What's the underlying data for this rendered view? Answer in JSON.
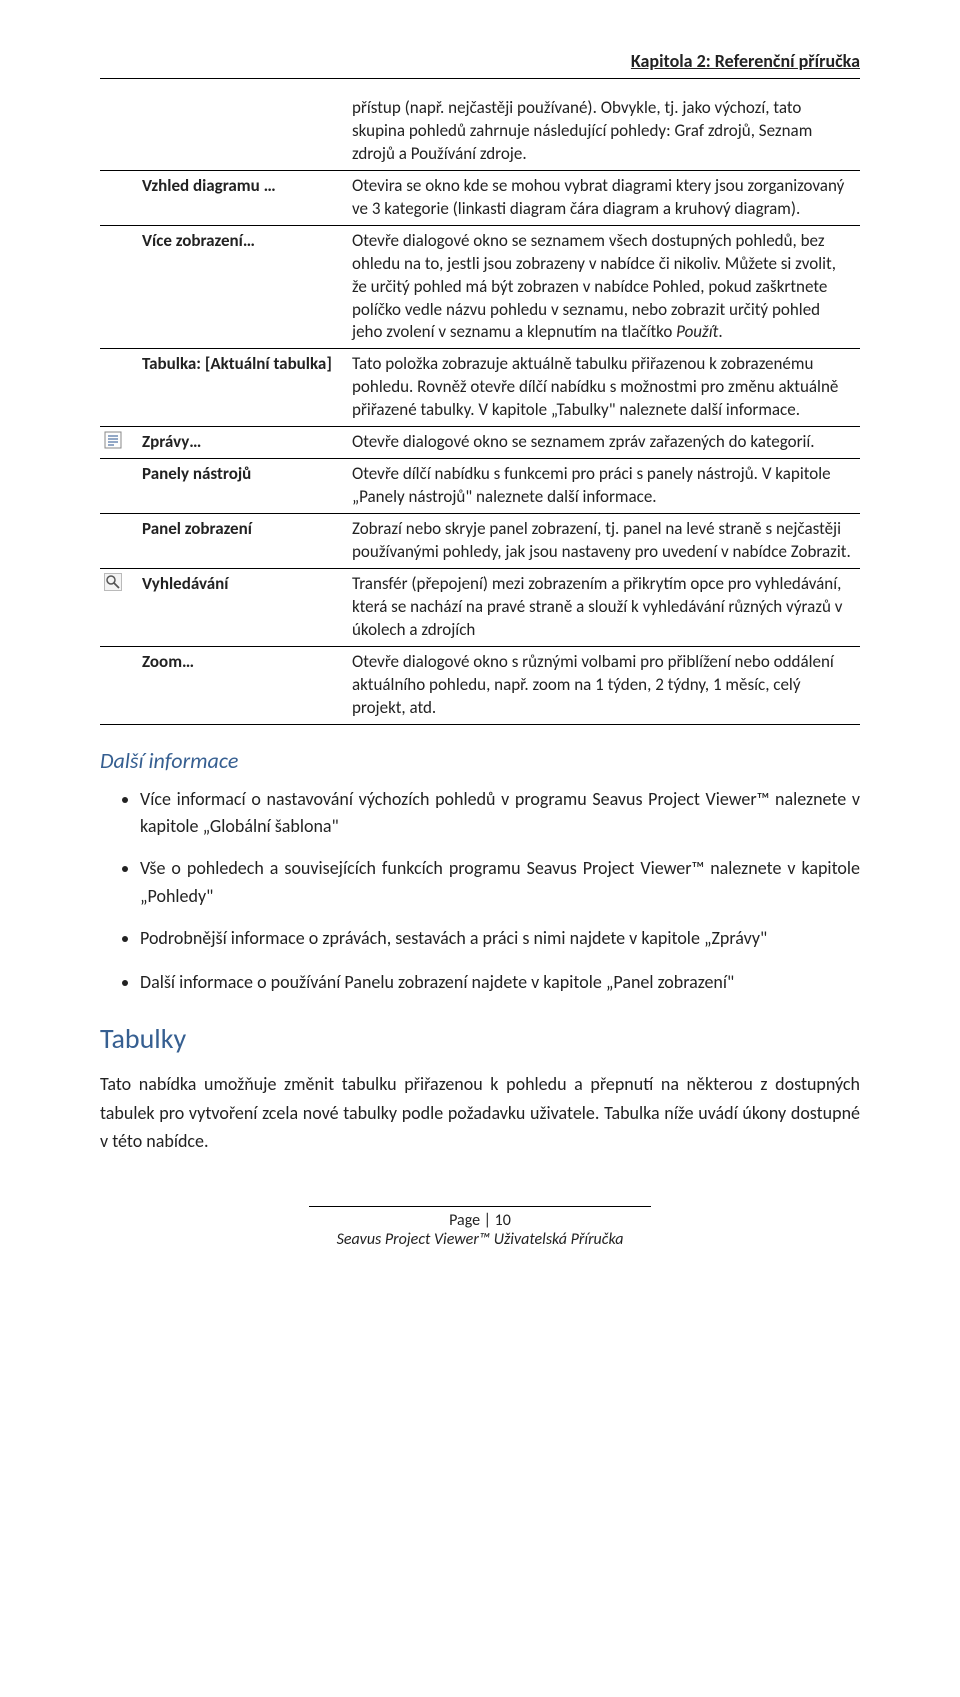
{
  "header": {
    "chapter": "Kapitola 2: Referenční příručka"
  },
  "table": {
    "rows": [
      {
        "icon": "",
        "label": "",
        "desc": "přístup (např. nejčastěji používané). Obvykle, tj. jako výchozí, tato skupina pohledů zahrnuje následující pohledy: Graf zdrojů, Seznam zdrojů a Používání zdroje."
      },
      {
        "icon": "",
        "label": "Vzhled diagramu …",
        "desc": "Otevira se okno  kde se mohou  vybrat diagrami  ktery jsou  zorganizovaný ve  3 kategorie (linkasti diagram  čára diagram  a kruhový diagram)."
      },
      {
        "icon": "",
        "label": "Více zobrazení…",
        "desc_html": "Otevře dialogové okno se seznamem všech dostupných pohledů, bez ohledu na to, jestli jsou zobrazeny v nabídce či nikoliv. Můžete si zvolit, že určitý pohled má být zobrazen v nabídce Pohled, pokud zaškrtnete políčko vedle názvu pohledu v seznamu, nebo zobrazit určitý pohled jeho zvolení v seznamu a klepnutím na tlačítko <span class=\"italic\">Použít</span>."
      },
      {
        "icon": "",
        "label": "Tabulka: [Aktuální tabulka]",
        "desc": "Tato položka zobrazuje aktuálně tabulku přiřazenou k zobrazenému pohledu. Rovněž otevře dílčí nabídku s možnostmi pro změnu aktuálně přiřazené tabulky. V kapitole „Tabulky\" naleznete další informace."
      },
      {
        "icon": "report-icon",
        "label": "Zprávy…",
        "desc": "Otevře dialogové okno se seznamem zpráv zařazených do kategorií."
      },
      {
        "icon": "",
        "label": "Panely nástrojů",
        "desc": "Otevře dílčí nabídku s funkcemi pro práci s panely nástrojů. V kapitole „Panely nástrojů\" naleznete další informace."
      },
      {
        "icon": "",
        "label": "Panel zobrazení",
        "desc": "Zobrazí nebo skryje panel zobrazení, tj. panel na levé straně s nejčastěji používanými pohledy, jak jsou nastaveny pro uvedení v nabídce Zobrazit."
      },
      {
        "icon": "search-icon",
        "label": "Vyhledávání",
        "desc": "Transfér (přepojení) mezi zobrazením a přikrytím opce pro vyhledávání, která se nachází na pravé straně a slouží k vyhledávání různých výrazů v úkolech a zdrojích"
      },
      {
        "icon": "",
        "label": "Zoom…",
        "desc": "Otevře dialogové okno s různými volbami pro přiblížení nebo oddálení aktuálního pohledu, např. zoom na 1 týden, 2 týdny, 1 měsíc, celý projekt, atd."
      }
    ]
  },
  "sections": {
    "more_info_title": "Další informace",
    "bullets": [
      "Více informací o nastavování výchozích pohledů v programu Seavus Project Viewer™ naleznete v kapitole „Globální šablona\"",
      "Vše o pohledech a souvisejících funkcích programu Seavus Project Viewer™ naleznete v kapitole „Pohledy\"",
      "Podrobnější informace o zprávách, sestavách a práci s nimi najdete v kapitole „Zprávy\"",
      "Další informace o používání Panelu zobrazení najdete v kapitole „Panel zobrazení\""
    ],
    "tables_title": "Tabulky",
    "tables_paragraph": "Tato nabídka umožňuje změnit tabulku přiřazenou k pohledu a přepnutí na některou z dostupných tabulek pro vytvoření zcela nové tabulky podle požadavku uživatele. Tabulka níže uvádí úkony dostupné v této nabídce."
  },
  "footer": {
    "page": "Page | 10",
    "title": "Seavus Project Viewer™ Uživatelská Příručka"
  }
}
